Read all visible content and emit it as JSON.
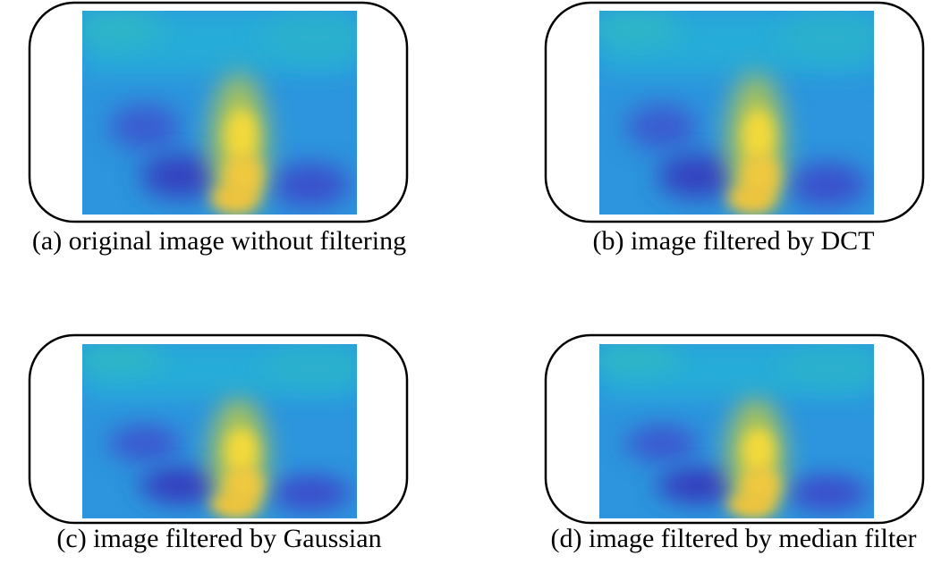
{
  "figure": {
    "panels": [
      {
        "caption": "(a) original image without filtering"
      },
      {
        "caption": "(b) image filtered by DCT"
      },
      {
        "caption": "(c) image filtered by Gaussian"
      },
      {
        "caption": "(d) image filtered by median filter"
      }
    ]
  }
}
